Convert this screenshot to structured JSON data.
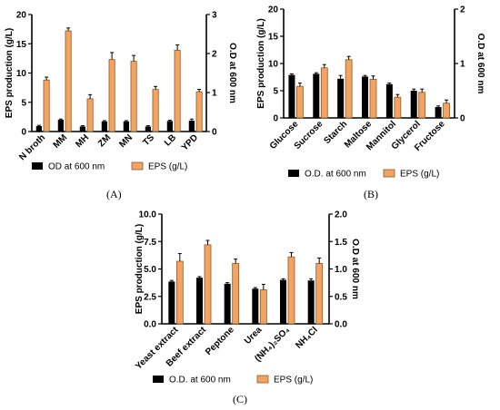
{
  "captions": {
    "a": "(A)",
    "b": "(B)",
    "c": "(C)"
  },
  "colors": {
    "od": "#000000",
    "eps": "#f4a460",
    "eps_edge": "#8b5a2b"
  },
  "chart_data": [
    {
      "id": "A",
      "type": "bar",
      "categories": [
        "N broth",
        "MM",
        "MH",
        "ZM",
        "MN",
        "TS",
        "LB",
        "YPD"
      ],
      "ylabel": "EPS production (g/L)",
      "y2label": "O.D at 600 nm",
      "ylim": [
        0,
        20
      ],
      "y2lim": [
        0,
        3
      ],
      "yticks": [
        "0",
        "5",
        "10",
        "15",
        "20"
      ],
      "y2ticks": [
        "0",
        "1",
        "2",
        "3"
      ],
      "series": [
        {
          "name": "OD at 600 nm",
          "axis": "right",
          "values": [
            0.14,
            0.3,
            0.13,
            0.26,
            0.26,
            0.13,
            0.27,
            0.28
          ],
          "errors": [
            0.02,
            0.02,
            0.02,
            0.02,
            0.02,
            0.02,
            0.02,
            0.04
          ]
        },
        {
          "name": "EPS (g/L)",
          "axis": "left",
          "values": [
            8.8,
            17.2,
            5.6,
            12.3,
            12.0,
            7.2,
            13.9,
            6.8
          ],
          "errors": [
            0.5,
            0.5,
            0.7,
            1.2,
            1.0,
            0.5,
            0.9,
            0.4
          ]
        }
      ]
    },
    {
      "id": "B",
      "type": "bar",
      "categories": [
        "Glucose",
        "Sucrose",
        "Starch",
        "Maltose",
        "Mannitol",
        "Glycerol",
        "Fructose"
      ],
      "ylabel": "EPS production (g/L)",
      "y2label": "O.D at 600 nm",
      "ylim": [
        0,
        20
      ],
      "y2lim": [
        0,
        2
      ],
      "yticks": [
        "0",
        "5",
        "10",
        "15",
        "20"
      ],
      "y2ticks": [
        "0",
        "1",
        "2"
      ],
      "series": [
        {
          "name": "O.D. at 600 nm",
          "axis": "right",
          "values": [
            0.79,
            0.81,
            0.72,
            0.76,
            0.62,
            0.5,
            0.2
          ],
          "errors": [
            0.02,
            0.02,
            0.06,
            0.02,
            0.02,
            0.03,
            0.02
          ]
        },
        {
          "name": "EPS (g/L)",
          "axis": "left",
          "values": [
            5.8,
            9.2,
            10.7,
            7.1,
            3.8,
            4.7,
            2.7
          ],
          "errors": [
            0.6,
            0.6,
            0.6,
            0.6,
            0.5,
            0.6,
            0.6
          ]
        }
      ]
    },
    {
      "id": "C",
      "type": "bar",
      "categories": [
        "Yeast extract",
        "Beef extract",
        "Peptone",
        "Urea",
        "(NH₄)₂SO₄",
        "NH₄Cl"
      ],
      "ylabel": "EPS production (g/L)",
      "y2label": "O.D at 600 nm",
      "ylim": [
        0,
        10
      ],
      "y2lim": [
        0,
        2
      ],
      "yticks": [
        "0.0",
        "2.5",
        "5.0",
        "7.5",
        "10.0"
      ],
      "y2ticks": [
        "0.0",
        "0.5",
        "1.0",
        "1.5",
        "2.0"
      ],
      "series": [
        {
          "name": "O.D. at 600 nm",
          "axis": "right",
          "values": [
            0.77,
            0.84,
            0.73,
            0.64,
            0.8,
            0.79
          ],
          "errors": [
            0.02,
            0.02,
            0.02,
            0.02,
            0.02,
            0.03
          ]
        },
        {
          "name": "EPS (g/L)",
          "axis": "left",
          "values": [
            5.7,
            7.2,
            5.5,
            3.1,
            6.1,
            5.5
          ],
          "errors": [
            0.7,
            0.4,
            0.4,
            0.5,
            0.4,
            0.5
          ]
        }
      ]
    }
  ]
}
